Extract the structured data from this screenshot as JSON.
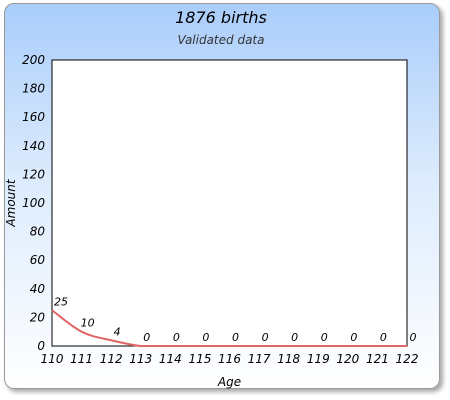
{
  "chart_data": {
    "type": "line",
    "title": "1876 births",
    "subtitle": "Validated data",
    "xlabel": "Age",
    "ylabel": "Amount",
    "x": [
      110,
      111,
      112,
      113,
      114,
      115,
      116,
      117,
      118,
      119,
      120,
      121,
      122
    ],
    "series": [
      {
        "values": [
          25,
          10,
          4,
          0,
          0,
          0,
          0,
          0,
          0,
          0,
          0,
          0,
          0
        ]
      }
    ],
    "xlim": [
      110,
      122
    ],
    "ylim": [
      0,
      200
    ],
    "yticks": [
      0,
      20,
      40,
      60,
      80,
      100,
      120,
      140,
      160,
      180,
      200
    ],
    "grid": false,
    "legend": "none",
    "line_color": "#e06666",
    "plot_background": "#ffffff"
  }
}
